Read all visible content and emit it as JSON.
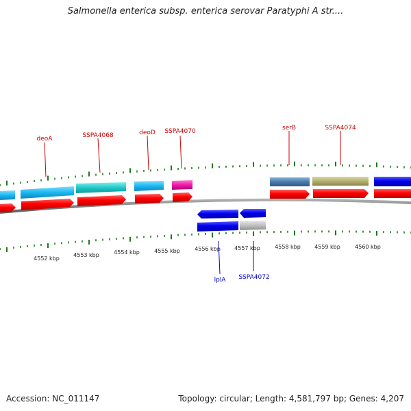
{
  "title": "Salmonella enterica subsp. enterica serovar Paratyphi A str....",
  "footer": {
    "accession": "Accession: NC_011147",
    "summary": "Topology: circular; Length: 4,581,797 bp; Genes: 4,207"
  },
  "colors": {
    "cds_forward": "#ff0000",
    "cds_reverse": "#0000ee",
    "label_forward": "#cc0000",
    "label_reverse": "#0000cc",
    "tick": "#1a7a1a",
    "backbone": "#888888"
  },
  "scale": {
    "ticks": [
      "4552 kbp",
      "4553 kbp",
      "4554 kbp",
      "4555 kbp",
      "4556 kbp",
      "4557 kbp",
      "4558 kbp",
      "4559 kbp",
      "4560 kbp"
    ]
  },
  "genes_forward": [
    {
      "name": "deoA"
    },
    {
      "name": "SSPA4068"
    },
    {
      "name": "deoD"
    },
    {
      "name": "SSPA4070"
    },
    {
      "name": "serB"
    },
    {
      "name": "SSPA4074"
    }
  ],
  "genes_reverse": [
    {
      "name": "lplA"
    },
    {
      "name": "SSPA4072"
    }
  ]
}
